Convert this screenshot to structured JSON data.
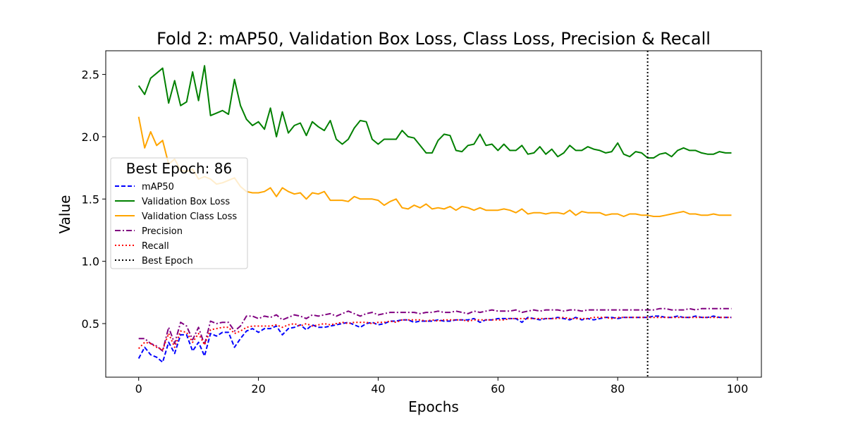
{
  "chart_data": {
    "type": "line",
    "title": "Fold 2: mAP50, Validation Box Loss, Class Loss, Precision & Recall",
    "xlabel": "Epochs",
    "ylabel": "Value",
    "xlim": [
      -5.5,
      104
    ],
    "ylim": [
      0.07,
      2.69
    ],
    "xticks": [
      0,
      20,
      40,
      60,
      80,
      100
    ],
    "yticks": [
      0.5,
      1.0,
      1.5,
      2.0,
      2.5
    ],
    "xtick_labels": [
      "0",
      "20",
      "40",
      "60",
      "80",
      "100"
    ],
    "ytick_labels": [
      "0.5",
      "1.0",
      "1.5",
      "2.0",
      "2.5"
    ],
    "grid": false,
    "legend": {
      "title": "Best Epoch: 86",
      "placement": "center-left"
    },
    "best_epoch_line": {
      "x": 85,
      "label": "Best Epoch",
      "color": "#000000",
      "style": "dotted"
    },
    "series": [
      {
        "name": "mAP50",
        "color": "#0000ff",
        "style": "dashed",
        "x": [
          0,
          1,
          2,
          3,
          4,
          5,
          6,
          7,
          8,
          9,
          10,
          11,
          12,
          13,
          14,
          15,
          16,
          17,
          18,
          19,
          20,
          21,
          22,
          23,
          24,
          25,
          26,
          27,
          28,
          29,
          30,
          31,
          32,
          33,
          34,
          35,
          36,
          37,
          38,
          39,
          40,
          41,
          42,
          43,
          44,
          45,
          46,
          47,
          48,
          49,
          50,
          51,
          52,
          53,
          54,
          55,
          56,
          57,
          58,
          59,
          60,
          61,
          62,
          63,
          64,
          65,
          66,
          67,
          68,
          69,
          70,
          71,
          72,
          73,
          74,
          75,
          76,
          77,
          78,
          79,
          80,
          81,
          82,
          83,
          84,
          85,
          86,
          87,
          88,
          89,
          90,
          91,
          92,
          93,
          94,
          95,
          96,
          97,
          98,
          99
        ],
        "y": [
          0.22,
          0.31,
          0.25,
          0.23,
          0.19,
          0.35,
          0.26,
          0.41,
          0.41,
          0.28,
          0.35,
          0.24,
          0.42,
          0.4,
          0.43,
          0.43,
          0.31,
          0.38,
          0.44,
          0.46,
          0.43,
          0.46,
          0.46,
          0.48,
          0.41,
          0.46,
          0.47,
          0.49,
          0.45,
          0.49,
          0.47,
          0.47,
          0.48,
          0.49,
          0.5,
          0.51,
          0.49,
          0.47,
          0.5,
          0.51,
          0.49,
          0.5,
          0.52,
          0.52,
          0.53,
          0.53,
          0.51,
          0.52,
          0.52,
          0.52,
          0.53,
          0.52,
          0.52,
          0.53,
          0.53,
          0.53,
          0.54,
          0.51,
          0.53,
          0.53,
          0.54,
          0.54,
          0.54,
          0.54,
          0.51,
          0.55,
          0.54,
          0.53,
          0.54,
          0.54,
          0.55,
          0.54,
          0.53,
          0.55,
          0.53,
          0.54,
          0.53,
          0.54,
          0.55,
          0.55,
          0.54,
          0.55,
          0.55,
          0.55,
          0.55,
          0.55,
          0.56,
          0.56,
          0.55,
          0.55,
          0.56,
          0.55,
          0.55,
          0.56,
          0.55,
          0.55,
          0.56,
          0.55,
          0.55,
          0.55
        ]
      },
      {
        "name": "Validation Box Loss",
        "color": "#008000",
        "style": "solid",
        "x": [
          0,
          1,
          2,
          3,
          4,
          5,
          6,
          7,
          8,
          9,
          10,
          11,
          12,
          13,
          14,
          15,
          16,
          17,
          18,
          19,
          20,
          21,
          22,
          23,
          24,
          25,
          26,
          27,
          28,
          29,
          30,
          31,
          32,
          33,
          34,
          35,
          36,
          37,
          38,
          39,
          40,
          41,
          42,
          43,
          44,
          45,
          46,
          47,
          48,
          49,
          50,
          51,
          52,
          53,
          54,
          55,
          56,
          57,
          58,
          59,
          60,
          61,
          62,
          63,
          64,
          65,
          66,
          67,
          68,
          69,
          70,
          71,
          72,
          73,
          74,
          75,
          76,
          77,
          78,
          79,
          80,
          81,
          82,
          83,
          84,
          85,
          86,
          87,
          88,
          89,
          90,
          91,
          92,
          93,
          94,
          95,
          96,
          97,
          98,
          99
        ],
        "y": [
          2.41,
          2.34,
          2.47,
          2.51,
          2.55,
          2.27,
          2.45,
          2.25,
          2.28,
          2.52,
          2.29,
          2.57,
          2.17,
          2.19,
          2.21,
          2.18,
          2.46,
          2.25,
          2.14,
          2.09,
          2.12,
          2.06,
          2.23,
          2.0,
          2.2,
          2.03,
          2.09,
          2.11,
          2.01,
          2.12,
          2.08,
          2.05,
          2.13,
          1.98,
          1.94,
          1.98,
          2.07,
          2.13,
          2.12,
          1.98,
          1.94,
          1.98,
          1.98,
          1.98,
          2.05,
          2.0,
          1.99,
          1.93,
          1.87,
          1.87,
          1.97,
          2.02,
          2.01,
          1.89,
          1.88,
          1.93,
          1.94,
          2.02,
          1.93,
          1.94,
          1.89,
          1.94,
          1.89,
          1.89,
          1.93,
          1.86,
          1.87,
          1.92,
          1.86,
          1.9,
          1.84,
          1.87,
          1.93,
          1.89,
          1.89,
          1.92,
          1.9,
          1.89,
          1.87,
          1.88,
          1.95,
          1.86,
          1.84,
          1.88,
          1.87,
          1.83,
          1.83,
          1.86,
          1.87,
          1.84,
          1.89,
          1.91,
          1.89,
          1.89,
          1.87,
          1.86,
          1.86,
          1.88,
          1.87,
          1.87
        ]
      },
      {
        "name": "Validation Class Loss",
        "color": "#ffa500",
        "style": "solid",
        "x": [
          0,
          1,
          2,
          3,
          4,
          5,
          6,
          7,
          8,
          9,
          10,
          11,
          12,
          13,
          14,
          15,
          16,
          17,
          18,
          19,
          20,
          21,
          22,
          23,
          24,
          25,
          26,
          27,
          28,
          29,
          30,
          31,
          32,
          33,
          34,
          35,
          36,
          37,
          38,
          39,
          40,
          41,
          42,
          43,
          44,
          45,
          46,
          47,
          48,
          49,
          50,
          51,
          52,
          53,
          54,
          55,
          56,
          57,
          58,
          59,
          60,
          61,
          62,
          63,
          64,
          65,
          66,
          67,
          68,
          69,
          70,
          71,
          72,
          73,
          74,
          75,
          76,
          77,
          78,
          79,
          80,
          81,
          82,
          83,
          84,
          85,
          86,
          87,
          88,
          89,
          90,
          91,
          92,
          93,
          94,
          95,
          96,
          97,
          98,
          99
        ],
        "y": [
          2.16,
          1.91,
          2.04,
          1.93,
          1.97,
          1.78,
          1.82,
          1.73,
          1.72,
          1.74,
          1.66,
          1.68,
          1.66,
          1.62,
          1.63,
          1.65,
          1.67,
          1.6,
          1.56,
          1.55,
          1.55,
          1.56,
          1.59,
          1.52,
          1.59,
          1.56,
          1.54,
          1.55,
          1.5,
          1.55,
          1.54,
          1.56,
          1.49,
          1.49,
          1.49,
          1.48,
          1.52,
          1.5,
          1.5,
          1.5,
          1.49,
          1.45,
          1.48,
          1.5,
          1.43,
          1.42,
          1.45,
          1.43,
          1.46,
          1.42,
          1.43,
          1.42,
          1.44,
          1.41,
          1.44,
          1.43,
          1.41,
          1.43,
          1.41,
          1.41,
          1.41,
          1.42,
          1.41,
          1.39,
          1.42,
          1.38,
          1.39,
          1.39,
          1.38,
          1.39,
          1.39,
          1.38,
          1.41,
          1.37,
          1.4,
          1.39,
          1.39,
          1.39,
          1.37,
          1.38,
          1.38,
          1.36,
          1.38,
          1.38,
          1.37,
          1.37,
          1.36,
          1.36,
          1.37,
          1.38,
          1.39,
          1.4,
          1.38,
          1.38,
          1.37,
          1.37,
          1.38,
          1.37,
          1.37,
          1.37
        ]
      },
      {
        "name": "Precision",
        "color": "#800080",
        "style": "dashdot",
        "x": [
          0,
          1,
          2,
          3,
          4,
          5,
          6,
          7,
          8,
          9,
          10,
          11,
          12,
          13,
          14,
          15,
          16,
          17,
          18,
          19,
          20,
          21,
          22,
          23,
          24,
          25,
          26,
          27,
          28,
          29,
          30,
          31,
          32,
          33,
          34,
          35,
          36,
          37,
          38,
          39,
          40,
          41,
          42,
          43,
          44,
          45,
          46,
          47,
          48,
          49,
          50,
          51,
          52,
          53,
          54,
          55,
          56,
          57,
          58,
          59,
          60,
          61,
          62,
          63,
          64,
          65,
          66,
          67,
          68,
          69,
          70,
          71,
          72,
          73,
          74,
          75,
          76,
          77,
          78,
          79,
          80,
          81,
          82,
          83,
          84,
          85,
          86,
          87,
          88,
          89,
          90,
          91,
          92,
          93,
          94,
          95,
          96,
          97,
          98,
          99
        ],
        "y": [
          0.38,
          0.38,
          0.34,
          0.32,
          0.28,
          0.47,
          0.34,
          0.51,
          0.48,
          0.37,
          0.47,
          0.33,
          0.52,
          0.5,
          0.51,
          0.51,
          0.44,
          0.48,
          0.56,
          0.56,
          0.54,
          0.56,
          0.55,
          0.57,
          0.53,
          0.55,
          0.57,
          0.56,
          0.54,
          0.57,
          0.56,
          0.57,
          0.58,
          0.56,
          0.58,
          0.6,
          0.58,
          0.56,
          0.58,
          0.59,
          0.57,
          0.58,
          0.59,
          0.59,
          0.59,
          0.59,
          0.59,
          0.58,
          0.59,
          0.59,
          0.6,
          0.59,
          0.59,
          0.6,
          0.59,
          0.58,
          0.6,
          0.59,
          0.6,
          0.61,
          0.6,
          0.6,
          0.6,
          0.61,
          0.59,
          0.6,
          0.61,
          0.6,
          0.61,
          0.61,
          0.61,
          0.6,
          0.61,
          0.61,
          0.6,
          0.61,
          0.61,
          0.61,
          0.61,
          0.61,
          0.61,
          0.61,
          0.61,
          0.61,
          0.61,
          0.61,
          0.61,
          0.62,
          0.62,
          0.61,
          0.61,
          0.61,
          0.62,
          0.61,
          0.62,
          0.62,
          0.62,
          0.62,
          0.62,
          0.62
        ]
      },
      {
        "name": "Recall",
        "color": "#ff0000",
        "style": "dotted",
        "x": [
          0,
          1,
          2,
          3,
          4,
          5,
          6,
          7,
          8,
          9,
          10,
          11,
          12,
          13,
          14,
          15,
          16,
          17,
          18,
          19,
          20,
          21,
          22,
          23,
          24,
          25,
          26,
          27,
          28,
          29,
          30,
          31,
          32,
          33,
          34,
          35,
          36,
          37,
          38,
          39,
          40,
          41,
          42,
          43,
          44,
          45,
          46,
          47,
          48,
          49,
          50,
          51,
          52,
          53,
          54,
          55,
          56,
          57,
          58,
          59,
          60,
          61,
          62,
          63,
          64,
          65,
          66,
          67,
          68,
          69,
          70,
          71,
          72,
          73,
          74,
          75,
          76,
          77,
          78,
          79,
          80,
          81,
          82,
          83,
          84,
          85,
          86,
          87,
          88,
          89,
          90,
          91,
          92,
          93,
          94,
          95,
          96,
          97,
          98,
          99
        ],
        "y": [
          0.3,
          0.35,
          0.34,
          0.31,
          0.29,
          0.42,
          0.31,
          0.44,
          0.43,
          0.35,
          0.42,
          0.33,
          0.45,
          0.46,
          0.47,
          0.47,
          0.42,
          0.44,
          0.47,
          0.48,
          0.48,
          0.48,
          0.48,
          0.49,
          0.47,
          0.49,
          0.5,
          0.48,
          0.5,
          0.48,
          0.49,
          0.5,
          0.49,
          0.5,
          0.51,
          0.5,
          0.51,
          0.51,
          0.51,
          0.5,
          0.51,
          0.51,
          0.52,
          0.51,
          0.53,
          0.53,
          0.53,
          0.53,
          0.52,
          0.53,
          0.52,
          0.53,
          0.53,
          0.53,
          0.53,
          0.52,
          0.53,
          0.53,
          0.53,
          0.53,
          0.53,
          0.53,
          0.54,
          0.54,
          0.54,
          0.54,
          0.54,
          0.54,
          0.54,
          0.54,
          0.54,
          0.55,
          0.54,
          0.54,
          0.54,
          0.54,
          0.55,
          0.55,
          0.55,
          0.54,
          0.55,
          0.55,
          0.55,
          0.55,
          0.55,
          0.55,
          0.55,
          0.55,
          0.55,
          0.55,
          0.55,
          0.55,
          0.55,
          0.55,
          0.55,
          0.55,
          0.55,
          0.55,
          0.55,
          0.55
        ]
      }
    ]
  }
}
